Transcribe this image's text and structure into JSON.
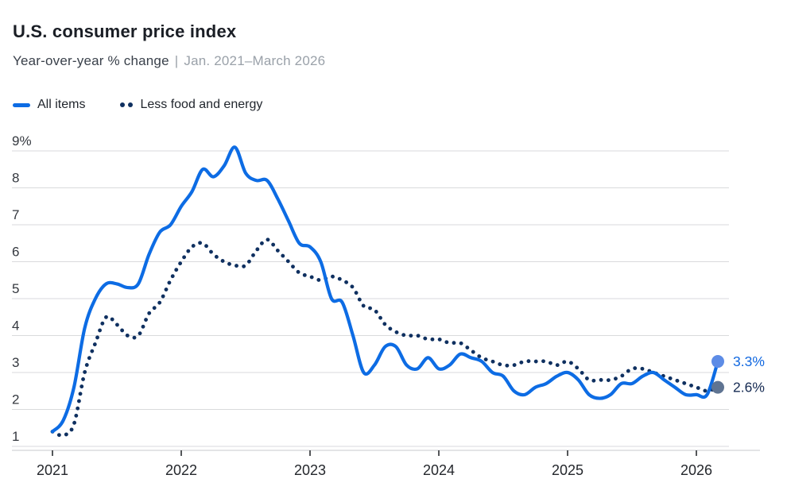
{
  "header": {
    "title": "U.S. consumer price index",
    "subtitle_main": "Year-over-year % change",
    "subtitle_sep": "|",
    "subtitle_range": "Jan. 2021–March 2026"
  },
  "legend": [
    {
      "label": "All items",
      "style": "solid",
      "color": "#0d6ce4"
    },
    {
      "label": "Less food and energy",
      "style": "dotted",
      "color": "#0f3060"
    }
  ],
  "chart_data": {
    "type": "line",
    "title": "U.S. consumer price index",
    "subtitle": "Year-over-year % change | Jan. 2021–March 2026",
    "x_unit": "monthly",
    "x_range": [
      "Jan 2021",
      "March 2026"
    ],
    "x_tick_labels": [
      "2021",
      "2022",
      "2023",
      "2024",
      "2025",
      "2026"
    ],
    "y_ticks": [
      "1",
      "2",
      "3",
      "4",
      "5",
      "6",
      "7",
      "8",
      "9%"
    ],
    "ylim": [
      1,
      9
    ],
    "grid": true,
    "legend_position": "top-left",
    "series": [
      {
        "name": "All items",
        "style": "solid",
        "color": "#0d6ce4",
        "values": [
          1.4,
          1.7,
          2.6,
          4.2,
          5.0,
          5.4,
          5.4,
          5.3,
          5.4,
          6.2,
          6.8,
          7.0,
          7.5,
          7.9,
          8.5,
          8.3,
          8.6,
          9.1,
          8.4,
          8.2,
          8.2,
          7.7,
          7.1,
          6.5,
          6.4,
          6.0,
          5.0,
          4.9,
          4.0,
          3.0,
          3.2,
          3.7,
          3.7,
          3.2,
          3.1,
          3.4,
          3.1,
          3.2,
          3.5,
          3.4,
          3.3,
          3.0,
          2.9,
          2.5,
          2.4,
          2.6,
          2.7,
          2.9,
          3.0,
          2.8,
          2.4,
          2.3,
          2.4,
          2.7,
          2.7,
          2.9,
          3.0,
          2.8,
          2.6,
          2.4,
          2.4,
          2.4,
          3.3
        ]
      },
      {
        "name": "Less food and energy",
        "style": "dotted",
        "color": "#0f3060",
        "values": [
          1.4,
          1.3,
          1.6,
          3.0,
          3.8,
          4.5,
          4.3,
          4.0,
          4.0,
          4.6,
          4.9,
          5.5,
          6.0,
          6.4,
          6.5,
          6.2,
          6.0,
          5.9,
          5.9,
          6.3,
          6.6,
          6.3,
          6.0,
          5.7,
          5.6,
          5.5,
          5.6,
          5.5,
          5.3,
          4.8,
          4.7,
          4.3,
          4.1,
          4.0,
          4.0,
          3.9,
          3.9,
          3.8,
          3.8,
          3.6,
          3.4,
          3.3,
          3.2,
          3.2,
          3.3,
          3.3,
          3.3,
          3.2,
          3.3,
          3.1,
          2.8,
          2.8,
          2.8,
          2.9,
          3.1,
          3.1,
          3.0,
          2.9,
          2.8,
          2.7,
          2.6,
          2.5,
          2.6
        ]
      }
    ],
    "end_labels": [
      {
        "series": "All items",
        "text": "3.3%",
        "value": 3.3,
        "color": "#1168e0",
        "dot_color": "#5d8ce6"
      },
      {
        "series": "Less food and energy",
        "text": "2.6%",
        "value": 2.6,
        "color": "#152a52",
        "dot_color": "#5f7492"
      }
    ],
    "axis_colors": {
      "gridline": "#d9dadc",
      "axis_line": "#c7cacd",
      "tick": "#2a2d31",
      "y_label": "#34383f",
      "x_label": "#24272c"
    }
  }
}
